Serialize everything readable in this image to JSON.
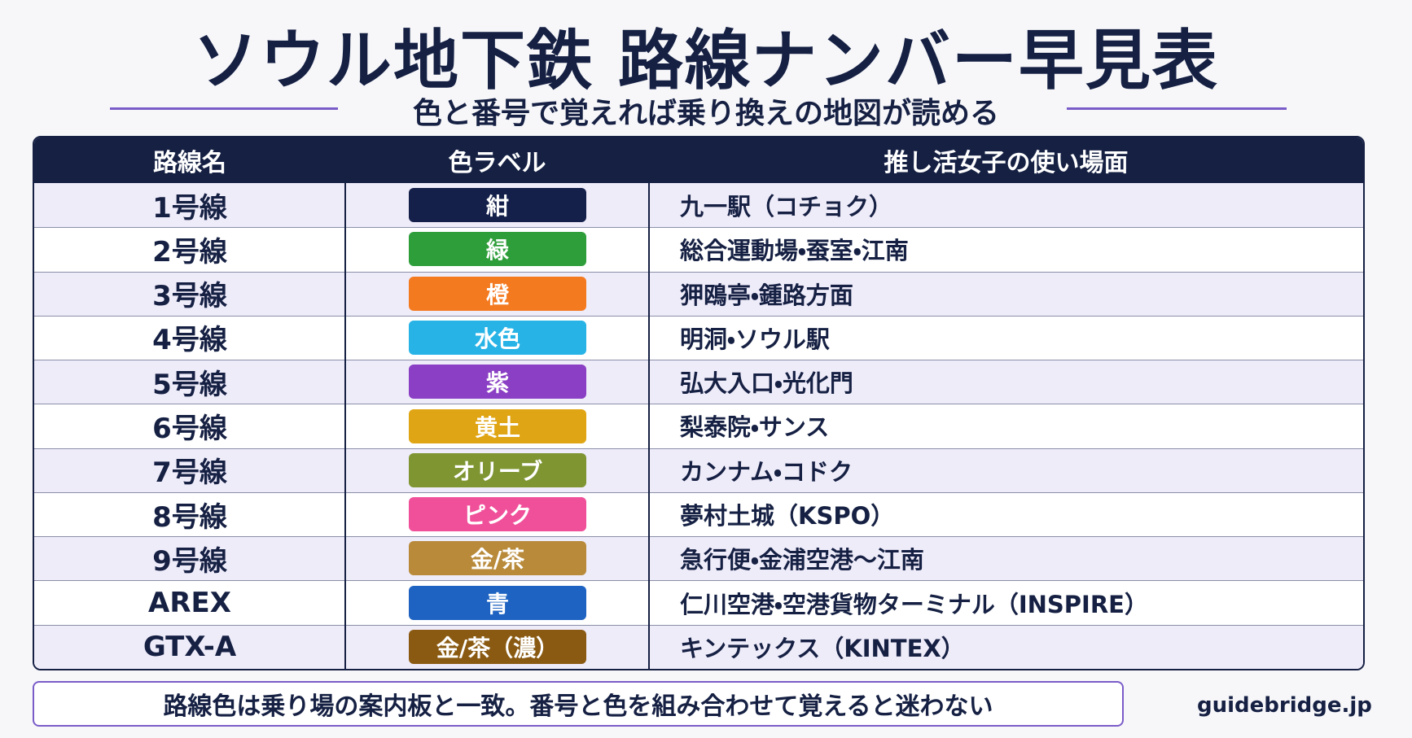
{
  "header": {
    "title": "ソウル地下鉄 路線ナンバー早見表",
    "subtitle": "色と番号で覚えれば乗り換えの地図が読める"
  },
  "table": {
    "columns": [
      "路線名",
      "色ラベル",
      "推し活女子の使い場面"
    ],
    "rows": [
      {
        "name": "1号線",
        "label": "紺",
        "color": "#14204a",
        "scene": "九一駅（コチョク）"
      },
      {
        "name": "2号線",
        "label": "緑",
        "color": "#2e9e3a",
        "scene": "総合運動場・蚕室・江南"
      },
      {
        "name": "3号線",
        "label": "橙",
        "color": "#f47a20",
        "scene": "狎鴎亭・鍾路方面"
      },
      {
        "name": "4号線",
        "label": "水色",
        "color": "#27b3e6",
        "scene": "明洞・ソウル駅"
      },
      {
        "name": "5号線",
        "label": "紫",
        "color": "#8a3fc4",
        "scene": "弘大入口・光化門"
      },
      {
        "name": "6号線",
        "label": "黄土",
        "color": "#e0a514",
        "scene": "梨泰院・サンス"
      },
      {
        "name": "7号線",
        "label": "オリーブ",
        "color": "#7e9532",
        "scene": "カンナム・コドク"
      },
      {
        "name": "8号線",
        "label": "ピンク",
        "color": "#f0509a",
        "scene": "夢村土城（KSPO）"
      },
      {
        "name": "9号線",
        "label": "金/茶",
        "color": "#b88a3a",
        "scene": "急行便・金浦空港〜江南"
      },
      {
        "name": "AREX",
        "label": "青",
        "color": "#1f63c2",
        "scene": "仁川空港・空港貨物ターミナル（INSPIRE）"
      },
      {
        "name": "GTX-A",
        "label": "金/茶（濃）",
        "color": "#8a5a12",
        "scene": "キンテックス（KINTEX）"
      }
    ]
  },
  "footer": {
    "note": "路線色は乗り場の案内板と一致。番号と色を組み合わせて覚えると迷わない",
    "site": "guidebridge.jp"
  }
}
